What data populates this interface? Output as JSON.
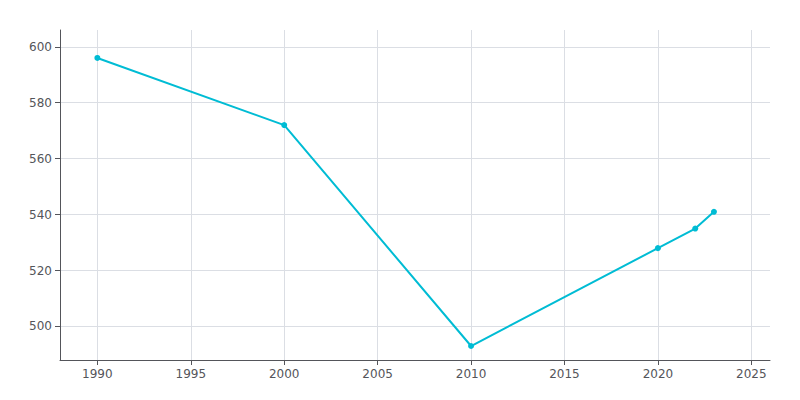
{
  "chart_data": {
    "type": "line",
    "x": [
      1990,
      2000,
      2010,
      2020,
      2022,
      2023
    ],
    "values": [
      596,
      572,
      493,
      528,
      535,
      541
    ],
    "color": "#00BCD4",
    "marker": "circle",
    "xlim": [
      1988,
      2026
    ],
    "ylim": [
      488,
      606
    ],
    "xticks": [
      1990,
      1995,
      2000,
      2005,
      2010,
      2015,
      2020,
      2025
    ],
    "yticks": [
      500,
      520,
      540,
      560,
      580,
      600
    ],
    "grid": true
  }
}
